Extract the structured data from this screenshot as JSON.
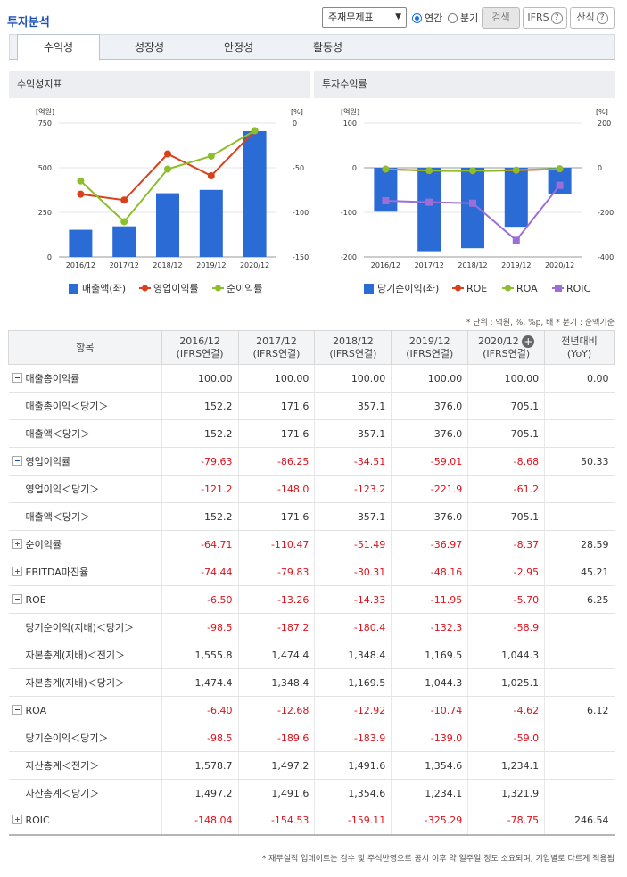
{
  "header": {
    "title": "투자분석",
    "select_value": "주재무제표",
    "radio_annual": "연간",
    "radio_quarter": "분기",
    "search_button": "검색",
    "ifrs_button": "IFRS",
    "formula_button": "산식"
  },
  "tabs": [
    "수익성",
    "성장성",
    "안정성",
    "활동성"
  ],
  "charts": {
    "left_title": "수익성지표",
    "right_title": "투자수익률"
  },
  "chart_data": [
    {
      "type": "bar",
      "categories": [
        "2016/12",
        "2017/12",
        "2018/12",
        "2019/12",
        "2020/12"
      ],
      "left_unit": "[억원]",
      "right_unit": "[%]",
      "left_ticks": [
        "750",
        "500",
        "250",
        "0"
      ],
      "right_ticks": [
        "0",
        "-50",
        "-100",
        "-150"
      ],
      "ylim_left": [
        0,
        750
      ],
      "ylim_right": [
        -150,
        0
      ],
      "series": [
        {
          "name": "매출액(좌)",
          "kind": "bar",
          "axis": "left",
          "color": "#2a6bd6",
          "values": [
            152.2,
            171.6,
            357.1,
            376.0,
            705.1
          ]
        },
        {
          "name": "영업이익률",
          "kind": "line",
          "axis": "right",
          "color": "#d9401c",
          "values": [
            -79.63,
            -86.25,
            -34.51,
            -59.01,
            -8.68
          ]
        },
        {
          "name": "순이익률",
          "kind": "line",
          "axis": "right",
          "color": "#8cbf2b",
          "values": [
            -64.71,
            -110.47,
            -51.49,
            -36.97,
            -8.37
          ]
        }
      ]
    },
    {
      "type": "bar",
      "categories": [
        "2016/12",
        "2017/12",
        "2018/12",
        "2019/12",
        "2020/12"
      ],
      "left_unit": "[억원]",
      "right_unit": "[%]",
      "left_ticks": [
        "100",
        "0",
        "-100",
        "-200"
      ],
      "right_ticks": [
        "200",
        "0",
        "-200",
        "-400"
      ],
      "ylim_left": [
        -200,
        100
      ],
      "ylim_right": [
        -400,
        200
      ],
      "series": [
        {
          "name": "당기순이익(좌)",
          "kind": "bar",
          "axis": "left",
          "color": "#2a6bd6",
          "values": [
            -98.5,
            -187.2,
            -180.4,
            -132.3,
            -58.9
          ]
        },
        {
          "name": "ROE",
          "kind": "line",
          "axis": "right",
          "color": "#d9401c",
          "values": [
            -6.5,
            -13.26,
            -14.33,
            -11.95,
            -5.7
          ]
        },
        {
          "name": "ROA",
          "kind": "line",
          "axis": "right",
          "color": "#8cbf2b",
          "values": [
            -6.4,
            -12.68,
            -12.92,
            -10.74,
            -4.62
          ]
        },
        {
          "name": "ROIC",
          "kind": "line",
          "axis": "right",
          "color": "#9b6fd6",
          "values": [
            -148.04,
            -154.53,
            -159.11,
            -325.29,
            -78.75
          ]
        }
      ]
    }
  ],
  "unit_note": "* 단위 : 억원, %, %p, 배   * 분기 : 순액기준",
  "table": {
    "head_item": "항목",
    "columns": [
      {
        "period": "2016/12",
        "basis": "(IFRS연결)"
      },
      {
        "period": "2017/12",
        "basis": "(IFRS연결)"
      },
      {
        "period": "2018/12",
        "basis": "(IFRS연결)"
      },
      {
        "period": "2019/12",
        "basis": "(IFRS연결)"
      },
      {
        "period": "2020/12",
        "basis": "(IFRS연결)"
      }
    ],
    "yoy_head": "전년대비",
    "yoy_sub": "(YoY)",
    "rows": [
      {
        "label": "매출총이익률",
        "toggle": "minus",
        "values": [
          "100.00",
          "100.00",
          "100.00",
          "100.00",
          "100.00"
        ],
        "yoy": "0.00"
      },
      {
        "label": "매출총이익＜당기＞",
        "sub": true,
        "values": [
          "152.2",
          "171.6",
          "357.1",
          "376.0",
          "705.1"
        ],
        "yoy": ""
      },
      {
        "label": "매출액＜당기＞",
        "sub": true,
        "values": [
          "152.2",
          "171.6",
          "357.1",
          "376.0",
          "705.1"
        ],
        "yoy": ""
      },
      {
        "label": "영업이익률",
        "toggle": "minus",
        "values": [
          "-79.63",
          "-86.25",
          "-34.51",
          "-59.01",
          "-8.68"
        ],
        "yoy": "50.33"
      },
      {
        "label": "영업이익＜당기＞",
        "sub": true,
        "values": [
          "-121.2",
          "-148.0",
          "-123.2",
          "-221.9",
          "-61.2"
        ],
        "yoy": ""
      },
      {
        "label": "매출액＜당기＞",
        "sub": true,
        "values": [
          "152.2",
          "171.6",
          "357.1",
          "376.0",
          "705.1"
        ],
        "yoy": ""
      },
      {
        "label": "순이익률",
        "toggle": "plus",
        "values": [
          "-64.71",
          "-110.47",
          "-51.49",
          "-36.97",
          "-8.37"
        ],
        "yoy": "28.59"
      },
      {
        "label": "EBITDA마진율",
        "toggle": "plus",
        "values": [
          "-74.44",
          "-79.83",
          "-30.31",
          "-48.16",
          "-2.95"
        ],
        "yoy": "45.21"
      },
      {
        "label": "ROE",
        "toggle": "minus",
        "values": [
          "-6.50",
          "-13.26",
          "-14.33",
          "-11.95",
          "-5.70"
        ],
        "yoy": "6.25"
      },
      {
        "label": "당기순이익(지배)＜당기＞",
        "sub": true,
        "values": [
          "-98.5",
          "-187.2",
          "-180.4",
          "-132.3",
          "-58.9"
        ],
        "yoy": ""
      },
      {
        "label": "자본총계(지배)＜전기＞",
        "sub": true,
        "values": [
          "1,555.8",
          "1,474.4",
          "1,348.4",
          "1,169.5",
          "1,044.3"
        ],
        "yoy": ""
      },
      {
        "label": "자본총계(지배)＜당기＞",
        "sub": true,
        "values": [
          "1,474.4",
          "1,348.4",
          "1,169.5",
          "1,044.3",
          "1,025.1"
        ],
        "yoy": ""
      },
      {
        "label": "ROA",
        "toggle": "minus",
        "values": [
          "-6.40",
          "-12.68",
          "-12.92",
          "-10.74",
          "-4.62"
        ],
        "yoy": "6.12"
      },
      {
        "label": "당기순이익＜당기＞",
        "sub": true,
        "values": [
          "-98.5",
          "-189.6",
          "-183.9",
          "-139.0",
          "-59.0"
        ],
        "yoy": ""
      },
      {
        "label": "자산총계＜전기＞",
        "sub": true,
        "values": [
          "1,578.7",
          "1,497.2",
          "1,491.6",
          "1,354.6",
          "1,234.1"
        ],
        "yoy": ""
      },
      {
        "label": "자산총계＜당기＞",
        "sub": true,
        "values": [
          "1,497.2",
          "1,491.6",
          "1,354.6",
          "1,234.1",
          "1,321.9"
        ],
        "yoy": ""
      },
      {
        "label": "ROIC",
        "toggle": "plus",
        "values": [
          "-148.04",
          "-154.53",
          "-159.11",
          "-325.29",
          "-78.75"
        ],
        "yoy": "246.54"
      }
    ]
  },
  "footer_note": "* 재무실적 업데이트는 검수 및 주석반영으로 공시 이후 약 일주일 정도 소요되며, 기업별로 다르게 적용됩"
}
